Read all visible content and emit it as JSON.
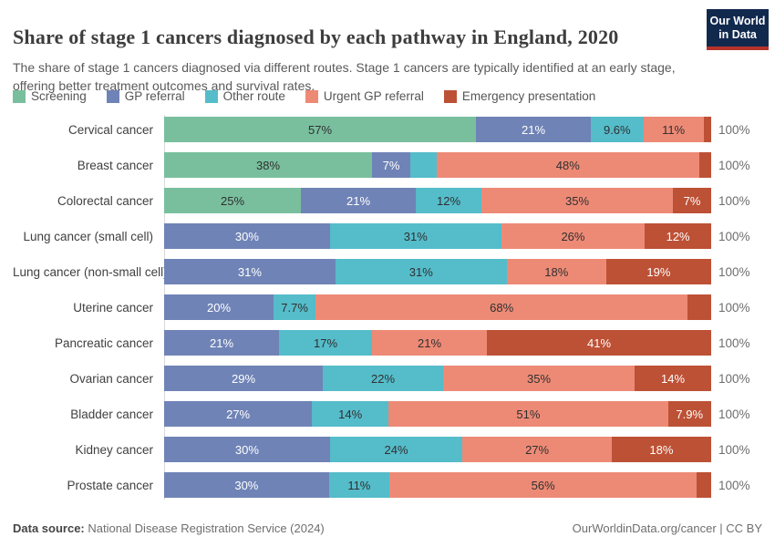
{
  "header": {
    "title": "Share of stage 1 cancers diagnosed by each pathway in England, 2020",
    "subtitle": "The share of stage 1 cancers diagnosed via different routes. Stage 1 cancers are typically identified at an early stage, offering better treatment outcomes and survival rates.",
    "logo": {
      "line1": "Our World",
      "line2": "in Data",
      "bg_color": "#12294e",
      "stripe_color": "#b5332a"
    }
  },
  "chart_data": {
    "type": "bar",
    "subtype": "horizontal_stacked_percentage",
    "legend_position": "top",
    "axis_color": "#d9d9d9",
    "right_axis_label": "100%",
    "categories": [
      "Cervical cancer",
      "Breast cancer",
      "Colorectal cancer",
      "Lung cancer (small cell)",
      "Lung cancer (non-small cell)",
      "Uterine cancer",
      "Pancreatic cancer",
      "Ovarian cancer",
      "Bladder cancer",
      "Kidney cancer",
      "Prostate cancer"
    ],
    "series": [
      {
        "name": "Screening",
        "color": "#79bf9e",
        "label_color": "#303030",
        "values": [
          57,
          38,
          25,
          0,
          0,
          0,
          0,
          0,
          0,
          0,
          0
        ],
        "labels": [
          "57%",
          "38%",
          "25%",
          null,
          null,
          null,
          null,
          null,
          null,
          null,
          null
        ]
      },
      {
        "name": "GP referral",
        "color": "#6f83b6",
        "label_color": "#ffffff",
        "values": [
          21,
          7,
          21,
          30,
          31,
          20,
          21,
          29,
          27,
          30,
          30
        ],
        "labels": [
          "21%",
          "7%",
          "21%",
          "30%",
          "31%",
          "20%",
          "21%",
          "29%",
          "27%",
          "30%",
          "30%"
        ]
      },
      {
        "name": "Other route",
        "color": "#55bcca",
        "label_color": "#303030",
        "values": [
          9.6,
          4.8,
          12,
          31,
          31,
          7.7,
          17,
          22,
          14,
          24,
          11
        ],
        "labels": [
          "9.6%",
          null,
          "12%",
          "31%",
          "31%",
          "7.7%",
          "17%",
          "22%",
          "14%",
          "24%",
          "11%"
        ]
      },
      {
        "name": "Urgent GP referral",
        "color": "#ed8a76",
        "label_color": "#303030",
        "values": [
          11,
          48,
          35,
          26,
          18,
          68,
          21,
          35,
          51,
          27,
          56
        ],
        "labels": [
          "11%",
          "48%",
          "35%",
          "26%",
          "18%",
          "68%",
          "21%",
          "35%",
          "51%",
          "27%",
          "56%"
        ]
      },
      {
        "name": "Emergency presentation",
        "color": "#bd5135",
        "label_color": "#ffffff",
        "values": [
          1.4,
          2.2,
          7,
          12,
          19,
          4.3,
          41,
          14,
          7.9,
          18,
          2.6
        ],
        "labels": [
          null,
          null,
          "7%",
          "12%",
          "19%",
          null,
          "41%",
          "14%",
          "7.9%",
          "18%",
          null
        ]
      }
    ]
  },
  "footer": {
    "source_label": "Data source:",
    "source_text": " National Disease Registration Service (2024)",
    "attribution": "OurWorldinData.org/cancer | CC BY"
  }
}
